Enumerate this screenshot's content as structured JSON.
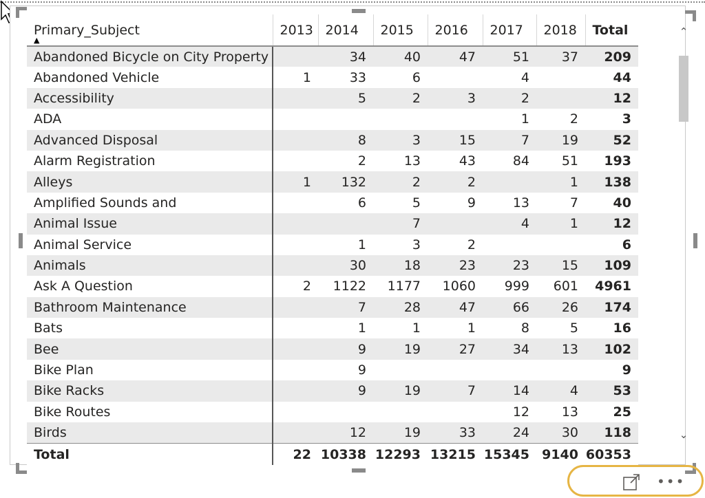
{
  "matrix": {
    "row_header_label": "Primary_Subject",
    "sort_indicator": "ascending",
    "columns": [
      "2013",
      "2014",
      "2015",
      "2016",
      "2017",
      "2018"
    ],
    "total_column_label": "Total",
    "rows": [
      {
        "subject": "Abandoned Bicycle on City Property",
        "values": [
          "",
          "34",
          "40",
          "47",
          "51",
          "37"
        ],
        "total": "209"
      },
      {
        "subject": "Abandoned Vehicle",
        "values": [
          "1",
          "33",
          "6",
          "",
          "4",
          ""
        ],
        "total": "44"
      },
      {
        "subject": "Accessibility",
        "values": [
          "",
          "5",
          "2",
          "3",
          "2",
          ""
        ],
        "total": "12"
      },
      {
        "subject": "ADA",
        "values": [
          "",
          "",
          "",
          "",
          "1",
          "2"
        ],
        "total": "3"
      },
      {
        "subject": "Advanced Disposal",
        "values": [
          "",
          "8",
          "3",
          "15",
          "7",
          "19"
        ],
        "total": "52"
      },
      {
        "subject": "Alarm Registration",
        "values": [
          "",
          "2",
          "13",
          "43",
          "84",
          "51"
        ],
        "total": "193"
      },
      {
        "subject": "Alleys",
        "values": [
          "1",
          "132",
          "2",
          "2",
          "",
          "1"
        ],
        "total": "138"
      },
      {
        "subject": "Amplified Sounds and",
        "values": [
          "",
          "6",
          "5",
          "9",
          "13",
          "7"
        ],
        "total": "40"
      },
      {
        "subject": "Animal Issue",
        "values": [
          "",
          "",
          "7",
          "",
          "4",
          "1"
        ],
        "total": "12"
      },
      {
        "subject": "Animal Service",
        "values": [
          "",
          "1",
          "3",
          "2",
          "",
          ""
        ],
        "total": "6"
      },
      {
        "subject": "Animals",
        "values": [
          "",
          "30",
          "18",
          "23",
          "23",
          "15"
        ],
        "total": "109"
      },
      {
        "subject": "Ask A Question",
        "values": [
          "2",
          "1122",
          "1177",
          "1060",
          "999",
          "601"
        ],
        "total": "4961"
      },
      {
        "subject": "Bathroom Maintenance",
        "values": [
          "",
          "7",
          "28",
          "47",
          "66",
          "26"
        ],
        "total": "174"
      },
      {
        "subject": "Bats",
        "values": [
          "",
          "1",
          "1",
          "1",
          "8",
          "5"
        ],
        "total": "16"
      },
      {
        "subject": "Bee",
        "values": [
          "",
          "9",
          "19",
          "27",
          "34",
          "13"
        ],
        "total": "102"
      },
      {
        "subject": "Bike Plan",
        "values": [
          "",
          "9",
          "",
          "",
          "",
          ""
        ],
        "total": "9"
      },
      {
        "subject": "Bike Racks",
        "values": [
          "",
          "9",
          "19",
          "7",
          "14",
          "4"
        ],
        "total": "53"
      },
      {
        "subject": "Bike Routes",
        "values": [
          "",
          "",
          "",
          "",
          "12",
          "13"
        ],
        "total": "25"
      },
      {
        "subject": "Birds",
        "values": [
          "",
          "12",
          "19",
          "33",
          "24",
          "30"
        ],
        "total": "118"
      }
    ],
    "footer": {
      "label": "Total",
      "values": [
        "22",
        "10338",
        "12293",
        "13215",
        "15345",
        "9140"
      ],
      "total": "60353"
    }
  },
  "scrollbar": {
    "up_glyph": "^",
    "down_glyph": "v",
    "scroll_position": 0.0
  },
  "visual_header": {
    "focus_mode_icon": "focus-mode-icon",
    "more_options_glyph": "•••",
    "highlight_color": "#e6b544"
  },
  "colors": {
    "row_band": "#eaeaea",
    "text": "#252423"
  }
}
